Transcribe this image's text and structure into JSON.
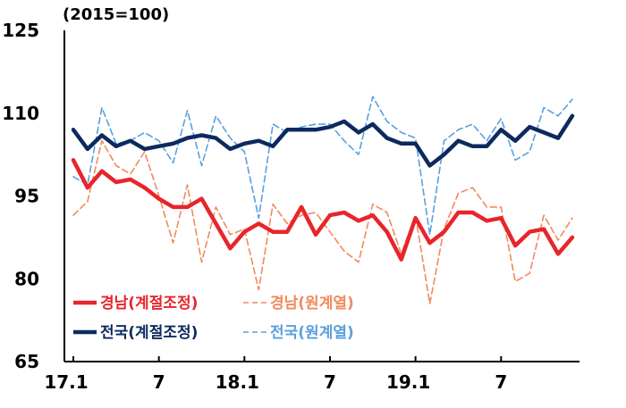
{
  "chart_data": {
    "type": "line",
    "unit_label": "(2015=100)",
    "y_ticks": [
      "125",
      "110",
      "95",
      "80",
      "65"
    ],
    "ylim": [
      65,
      125
    ],
    "x_ticks": [
      {
        "label": "17.1",
        "index": 0
      },
      {
        "label": "7",
        "index": 6
      },
      {
        "label": "18.1",
        "index": 12
      },
      {
        "label": "7",
        "index": 18
      },
      {
        "label": "19.1",
        "index": 24
      },
      {
        "label": "7",
        "index": 30
      }
    ],
    "legend_position": "bottom-left",
    "series": [
      {
        "name": "경남(계절조정)",
        "color": "#e8252b",
        "style": "solid",
        "values": [
          101.5,
          96.5,
          99.5,
          97.5,
          98.0,
          96.5,
          94.5,
          93.0,
          93.0,
          94.5,
          90.0,
          85.5,
          88.5,
          90.0,
          88.5,
          88.5,
          93.0,
          88.0,
          91.5,
          92.0,
          90.5,
          91.5,
          88.5,
          83.5,
          91.0,
          86.5,
          88.5,
          92.0,
          92.0,
          90.5,
          91.0,
          86.0,
          88.5,
          89.0,
          84.5,
          87.5
        ]
      },
      {
        "name": "경남(원계열)",
        "color": "#f08a5d",
        "style": "dashed",
        "values": [
          91.5,
          94.0,
          105.0,
          100.5,
          99.0,
          103.0,
          95.0,
          86.5,
          97.0,
          83.0,
          93.0,
          88.0,
          89.0,
          78.0,
          93.5,
          90.0,
          91.5,
          92.0,
          88.5,
          85.0,
          83.0,
          93.5,
          92.0,
          84.5,
          91.5,
          75.5,
          89.0,
          95.5,
          96.5,
          93.0,
          93.0,
          79.5,
          81.0,
          91.5,
          87.0,
          91.0
        ]
      },
      {
        "name": "전국(계절조정)",
        "color": "#0d2a5e",
        "style": "solid",
        "values": [
          107.0,
          103.5,
          106.0,
          104.0,
          105.0,
          103.5,
          104.0,
          104.5,
          105.5,
          106.0,
          105.5,
          103.5,
          104.5,
          105.0,
          104.0,
          107.0,
          107.0,
          107.0,
          107.5,
          108.5,
          106.5,
          108.0,
          105.5,
          104.5,
          104.5,
          100.5,
          102.5,
          105.0,
          104.0,
          104.0,
          107.0,
          105.0,
          107.5,
          106.5,
          105.5,
          109.5
        ]
      },
      {
        "name": "전국(원계열)",
        "color": "#5aa0dc",
        "style": "dashed",
        "values": [
          98.5,
          97.0,
          111.0,
          104.5,
          105.0,
          106.5,
          105.0,
          101.0,
          110.5,
          100.5,
          109.5,
          105.5,
          103.0,
          91.0,
          108.0,
          106.5,
          107.5,
          108.0,
          108.0,
          105.0,
          102.5,
          113.0,
          108.5,
          106.5,
          105.5,
          88.0,
          105.0,
          107.0,
          108.0,
          105.0,
          109.0,
          101.5,
          103.0,
          111.0,
          109.5,
          112.5
        ]
      }
    ]
  }
}
